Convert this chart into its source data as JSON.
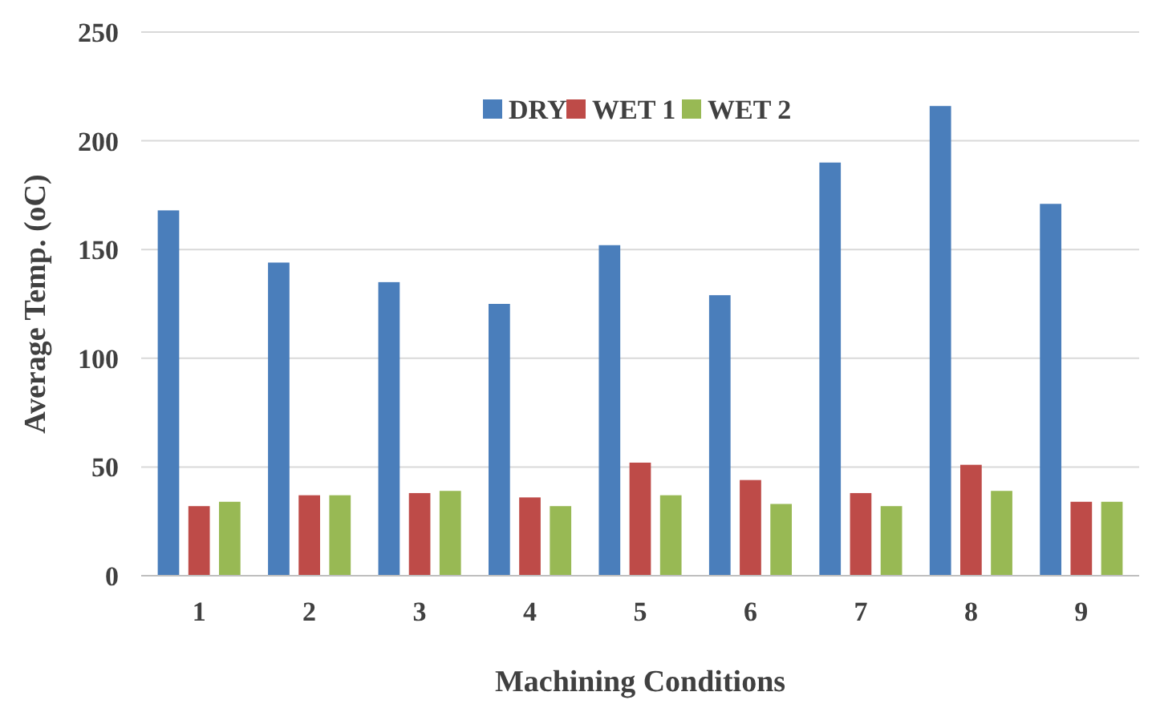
{
  "chart_data": {
    "type": "bar",
    "xlabel": "Machining Conditions",
    "ylabel": "Average Temp. (oC)",
    "categories": [
      "1",
      "2",
      "3",
      "4",
      "5",
      "6",
      "7",
      "8",
      "9"
    ],
    "series": [
      {
        "name": "DRY",
        "color": "#4a7ebb",
        "values": [
          168,
          144,
          135,
          125,
          152,
          129,
          190,
          216,
          171
        ]
      },
      {
        "name": "WET 1",
        "color": "#be4b48",
        "values": [
          32,
          37,
          38,
          36,
          52,
          44,
          38,
          51,
          34
        ]
      },
      {
        "name": "WET 2",
        "color": "#98b954",
        "values": [
          34,
          37,
          39,
          32,
          37,
          33,
          32,
          39,
          34
        ]
      }
    ],
    "ylim": [
      0,
      250
    ],
    "yticks": [
      0,
      50,
      100,
      150,
      200,
      250
    ],
    "grid": "y",
    "legend": "top"
  }
}
